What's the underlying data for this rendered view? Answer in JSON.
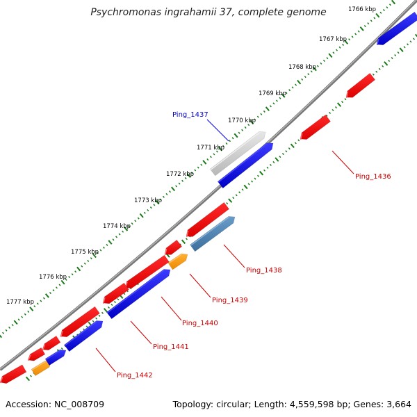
{
  "title": "Psychromonas ingrahamii 37, complete genome",
  "footer": {
    "accession": "Accession: NC_008709",
    "summary": "Topology: circular; Length: 4,559,598 bp; Genes: 3,664"
  },
  "colors": {
    "backbone": "#8c8c8c",
    "ticks": "#1a7a1a",
    "forward_gene": "#ee0000",
    "reverse_gene": "#0000dd",
    "highlight_gene": "#c8c8c8",
    "steelblue_gene": "#4a7fb0",
    "orange_gene": "#ff9900",
    "label_blue": "#0000cc",
    "label_red": "#cc0000"
  },
  "scale_labels": [
    "1766 kbp",
    "1767 kbp",
    "1768 kbp",
    "1769 kbp",
    "1770 kbp",
    "1771 kbp",
    "1772 kbp",
    "1773 kbp",
    "1774 kbp",
    "1775 kbp",
    "1776 kbp",
    "1777 kbp"
  ],
  "gene_labels": [
    {
      "id": "label-ping-1437",
      "text": "Ping_1437",
      "color": "blue"
    },
    {
      "id": "label-ping-1436",
      "text": "Ping_1436",
      "color": "red"
    },
    {
      "id": "label-ping-1438",
      "text": "Ping_1438",
      "color": "red"
    },
    {
      "id": "label-ping-1439",
      "text": "Ping_1439",
      "color": "red"
    },
    {
      "id": "label-ping-1440",
      "text": "Ping_1440",
      "color": "red"
    },
    {
      "id": "label-ping-1441",
      "text": "Ping_1441",
      "color": "red"
    },
    {
      "id": "label-ping-1442",
      "text": "Ping_1442",
      "color": "red"
    }
  ]
}
